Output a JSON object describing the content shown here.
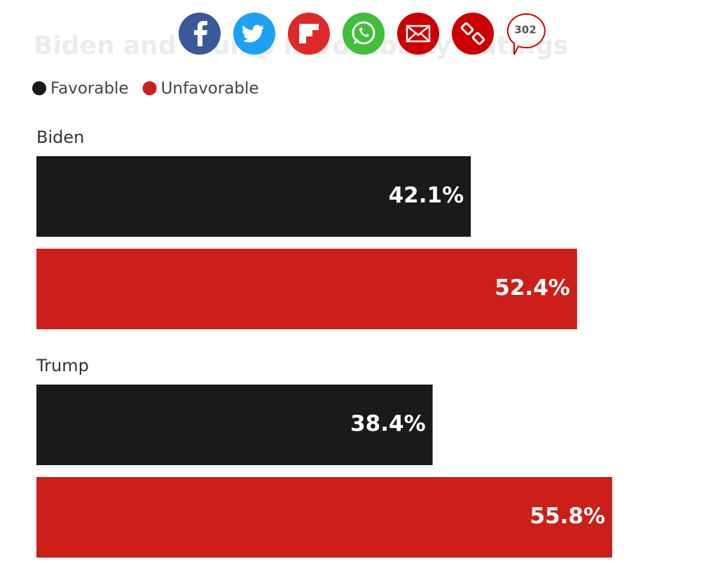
{
  "chart_data": {
    "type": "bar",
    "orientation": "horizontal",
    "title": "Biden and Trump Favorability Ratings",
    "categories": [
      "Biden",
      "Trump"
    ],
    "series": [
      {
        "name": "Favorable",
        "color": "#1a1a1a",
        "values": [
          42.1,
          38.4
        ],
        "value_labels": [
          "42.1%",
          "38.4%"
        ]
      },
      {
        "name": "Unfavorable",
        "color": "#cc1f1a",
        "values": [
          52.4,
          55.8
        ],
        "value_labels": [
          "52.4%",
          "55.8%"
        ]
      }
    ]
  },
  "share": {
    "comments": "302"
  }
}
